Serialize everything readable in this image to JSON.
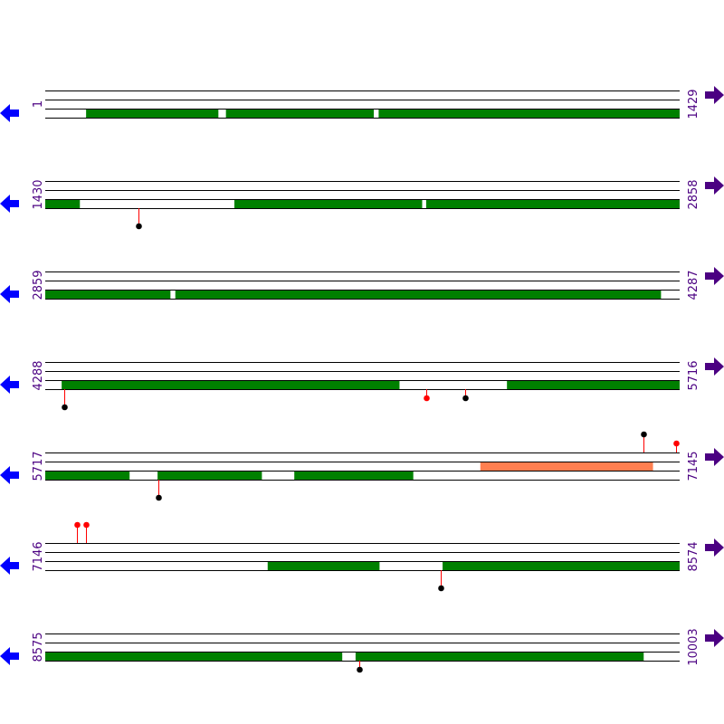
{
  "colors": {
    "track_line": "#000000",
    "domain": "#008000",
    "region": "#ff7f50",
    "label": "#4b0082",
    "left_arrow": "#0000ff",
    "right_arrow": "#4b0082",
    "stem": "#ff0000"
  },
  "residues_per_row": 1429,
  "rows": [
    {
      "start": "1",
      "end": "1429",
      "lower": [
        [
          93,
          390
        ],
        [
          408,
          740
        ],
        [
          752,
          1429
        ]
      ],
      "upper": [],
      "markers": []
    },
    {
      "start": "1430",
      "end": "2858",
      "lower": [
        [
          1430,
          1507
        ],
        [
          1856,
          2278
        ],
        [
          2288,
          2858
        ]
      ],
      "upper": [],
      "markers": [
        {
          "pos": 1640,
          "side": "bottom",
          "color": "#000000",
          "level": 2
        }
      ]
    },
    {
      "start": "2859",
      "end": "4287",
      "lower": [
        [
          2859,
          3140
        ],
        [
          3152,
          4245
        ]
      ],
      "upper": [],
      "markers": []
    },
    {
      "start": "4288",
      "end": "5716",
      "lower": [
        [
          4325,
          5085
        ],
        [
          5328,
          5716
        ]
      ],
      "upper": [],
      "markers": [
        {
          "pos": 4331,
          "side": "bottom",
          "color": "#000000",
          "level": 2
        },
        {
          "pos": 5146,
          "side": "bottom",
          "color": "#ff0000",
          "level": 1
        },
        {
          "pos": 5234,
          "side": "bottom",
          "color": "#000000",
          "level": 1
        }
      ]
    },
    {
      "start": "5717",
      "end": "7145",
      "lower": [
        [
          5717,
          5906
        ],
        [
          5970,
          6204
        ],
        [
          6278,
          6545
        ]
      ],
      "upper": [
        [
          6697,
          7085
        ]
      ],
      "markers": [
        {
          "pos": 7064,
          "side": "top",
          "color": "#000000",
          "level": 2
        },
        {
          "pos": 7138,
          "side": "top",
          "color": "#ff0000",
          "level": 1
        },
        {
          "pos": 5972,
          "side": "bottom",
          "color": "#000000",
          "level": 2
        }
      ]
    },
    {
      "start": "7146",
      "end": "8574",
      "lower": [
        [
          7647,
          7898
        ],
        [
          8041,
          8574
        ]
      ],
      "upper": [],
      "markers": [
        {
          "pos": 7217,
          "side": "top",
          "color": "#ff0000",
          "level": 2
        },
        {
          "pos": 7238,
          "side": "top",
          "color": "#ff0000",
          "level": 2
        },
        {
          "pos": 8037,
          "side": "bottom",
          "color": "#000000",
          "level": 2
        }
      ]
    },
    {
      "start": "8575",
      "end": "10003",
      "lower": [
        [
          8575,
          9243
        ],
        [
          9274,
          9922
        ]
      ],
      "upper": [],
      "markers": [
        {
          "pos": 9282,
          "side": "bottom",
          "color": "#000000",
          "level": 1
        }
      ]
    }
  ]
}
